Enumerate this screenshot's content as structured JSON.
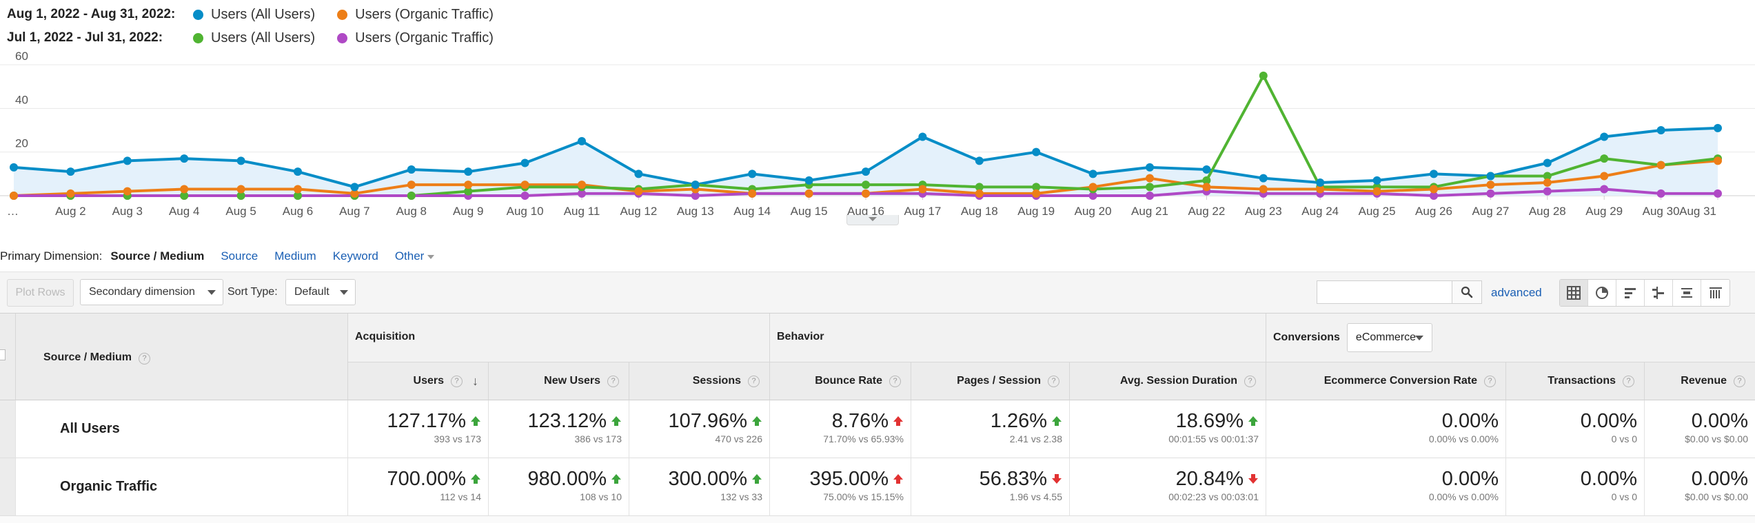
{
  "legend": {
    "range1": "Aug 1, 2022 - Aug 31, 2022:",
    "range2": "Jul 1, 2022 - Jul 31, 2022:",
    "items1": [
      {
        "label": "Users (All Users)",
        "color": "#058dc7"
      },
      {
        "label": "Users (Organic Traffic)",
        "color": "#ed7e17"
      }
    ],
    "items2": [
      {
        "label": "Users (All Users)",
        "color": "#50b432"
      },
      {
        "label": "Users (Organic Traffic)",
        "color": "#af49c5"
      }
    ]
  },
  "chart_data": {
    "type": "line",
    "x": [
      "…",
      "Aug 2",
      "Aug 3",
      "Aug 4",
      "Aug 5",
      "Aug 6",
      "Aug 7",
      "Aug 8",
      "Aug 9",
      "Aug 10",
      "Aug 11",
      "Aug 12",
      "Aug 13",
      "Aug 14",
      "Aug 15",
      "Aug 16",
      "Aug 17",
      "Aug 18",
      "Aug 19",
      "Aug 20",
      "Aug 21",
      "Aug 22",
      "Aug 23",
      "Aug 24",
      "Aug 25",
      "Aug 26",
      "Aug 27",
      "Aug 28",
      "Aug 29",
      "Aug 30",
      "Aug 31"
    ],
    "y_ticks": [
      "60",
      "40",
      "20"
    ],
    "ylim": [
      0,
      64
    ],
    "series": [
      {
        "name": "Users (All Users)",
        "color": "#058dc7",
        "area": true,
        "values": [
          13,
          11,
          16,
          17,
          16,
          11,
          4,
          12,
          11,
          15,
          25,
          10,
          5,
          10,
          7,
          11,
          27,
          16,
          20,
          10,
          13,
          12,
          8,
          6,
          7,
          10,
          9,
          15,
          27,
          30,
          31
        ]
      },
      {
        "name": "Users (Organic Traffic)",
        "color": "#ed7e17",
        "values": [
          0,
          1,
          2,
          3,
          3,
          3,
          1,
          5,
          5,
          5,
          5,
          2,
          3,
          1,
          1,
          1,
          3,
          1,
          1,
          4,
          8,
          4,
          3,
          3,
          2,
          3,
          5,
          6,
          9,
          14,
          16
        ]
      },
      {
        "name": "Users (All Users)",
        "color": "#50b432",
        "values": [
          0,
          0,
          0,
          0,
          0,
          0,
          0,
          0,
          2,
          4,
          4,
          3,
          5,
          3,
          5,
          5,
          5,
          4,
          4,
          3,
          4,
          7,
          55,
          4,
          4,
          4,
          9,
          9,
          17,
          14,
          17
        ]
      },
      {
        "name": "Users (Organic Traffic)",
        "color": "#af49c5",
        "values": [
          0,
          0,
          0,
          0,
          0,
          0,
          0,
          0,
          0,
          0,
          1,
          1,
          0,
          1,
          1,
          1,
          1,
          0,
          0,
          0,
          0,
          2,
          1,
          1,
          1,
          0,
          1,
          2,
          3,
          1,
          1
        ]
      }
    ]
  },
  "primary_dimension": {
    "label": "Primary Dimension:",
    "current": "Source / Medium",
    "links": [
      "Source",
      "Medium",
      "Keyword"
    ],
    "other": "Other"
  },
  "toolbar": {
    "plot_rows": "Plot Rows",
    "secondary_dimension": "Secondary dimension",
    "sort_type_label": "Sort Type:",
    "sort_type_value": "Default",
    "search_value": "",
    "advanced": "advanced",
    "views": [
      "grid-view-icon",
      "pie-view-icon",
      "bar-view-icon",
      "comparison-view-icon",
      "term-cloud-icon",
      "pivot-view-icon"
    ]
  },
  "table": {
    "dimension_header": "Source / Medium",
    "groups": {
      "acquisition": "Acquisition",
      "behavior": "Behavior",
      "conversions": "Conversions",
      "conversions_select": "eCommerce"
    },
    "columns": [
      "Users",
      "New Users",
      "Sessions",
      "Bounce Rate",
      "Pages / Session",
      "Avg. Session Duration",
      "Ecommerce Conversion Rate",
      "Transactions",
      "Revenue"
    ],
    "rows": [
      {
        "label": "All Users",
        "cells": [
          {
            "pct": "127.17%",
            "detail": "393 vs 173",
            "dir": "up-green"
          },
          {
            "pct": "123.12%",
            "detail": "386 vs 173",
            "dir": "up-green"
          },
          {
            "pct": "107.96%",
            "detail": "470 vs 226",
            "dir": "up-green"
          },
          {
            "pct": "8.76%",
            "detail": "71.70% vs 65.93%",
            "dir": "up-red"
          },
          {
            "pct": "1.26%",
            "detail": "2.41 vs 2.38",
            "dir": "up-green"
          },
          {
            "pct": "18.69%",
            "detail": "00:01:55 vs 00:01:37",
            "dir": "up-green"
          },
          {
            "pct": "0.00%",
            "detail": "0.00% vs 0.00%",
            "dir": "none"
          },
          {
            "pct": "0.00%",
            "detail": "0 vs 0",
            "dir": "none"
          },
          {
            "pct": "0.00%",
            "detail": "$0.00 vs $0.00",
            "dir": "none"
          }
        ]
      },
      {
        "label": "Organic Traffic",
        "cells": [
          {
            "pct": "700.00%",
            "detail": "112 vs 14",
            "dir": "up-green"
          },
          {
            "pct": "980.00%",
            "detail": "108 vs 10",
            "dir": "up-green"
          },
          {
            "pct": "300.00%",
            "detail": "132 vs 33",
            "dir": "up-green"
          },
          {
            "pct": "395.00%",
            "detail": "75.00% vs 15.15%",
            "dir": "up-red"
          },
          {
            "pct": "56.83%",
            "detail": "1.96 vs 4.55",
            "dir": "down-red"
          },
          {
            "pct": "20.84%",
            "detail": "00:02:23 vs 00:03:01",
            "dir": "down-red"
          },
          {
            "pct": "0.00%",
            "detail": "0.00% vs 0.00%",
            "dir": "none"
          },
          {
            "pct": "0.00%",
            "detail": "0 vs 0",
            "dir": "none"
          },
          {
            "pct": "0.00%",
            "detail": "$0.00 vs $0.00",
            "dir": "none"
          }
        ]
      }
    ]
  }
}
